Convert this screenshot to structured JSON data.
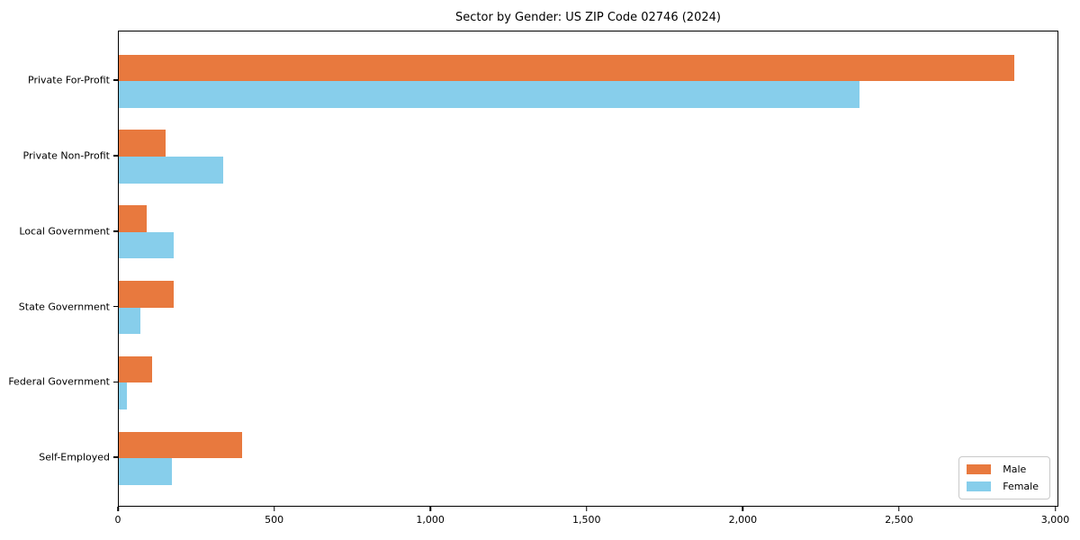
{
  "chart_data": {
    "type": "bar",
    "orientation": "horizontal",
    "title": "Sector by Gender: US ZIP Code 02746 (2024)",
    "categories": [
      "Private For-Profit",
      "Private Non-Profit",
      "Local Government",
      "State Government",
      "Federal Government",
      "Self-Employed"
    ],
    "series": [
      {
        "name": "Male",
        "color": "#e8793e",
        "values": [
          2865,
          150,
          90,
          175,
          105,
          395
        ]
      },
      {
        "name": "Female",
        "color": "#87ceeb",
        "values": [
          2370,
          335,
          175,
          70,
          25,
          170
        ]
      }
    ],
    "xlabel": "",
    "ylabel": "",
    "xlim": [
      0,
      3010
    ],
    "xticks": [
      {
        "value": 0,
        "label": "0"
      },
      {
        "value": 500,
        "label": "500"
      },
      {
        "value": 1000,
        "label": "1,000"
      },
      {
        "value": 1500,
        "label": "1,500"
      },
      {
        "value": 2000,
        "label": "2,000"
      },
      {
        "value": 2500,
        "label": "2,500"
      },
      {
        "value": 3000,
        "label": "3,000"
      }
    ],
    "grid": false,
    "legend": {
      "position": "lower right",
      "entries": [
        "Male",
        "Female"
      ]
    }
  },
  "colors": {
    "background": "#ffffff",
    "text": "#000000",
    "spine": "#000000",
    "legend_border": "#c9c9c9"
  }
}
